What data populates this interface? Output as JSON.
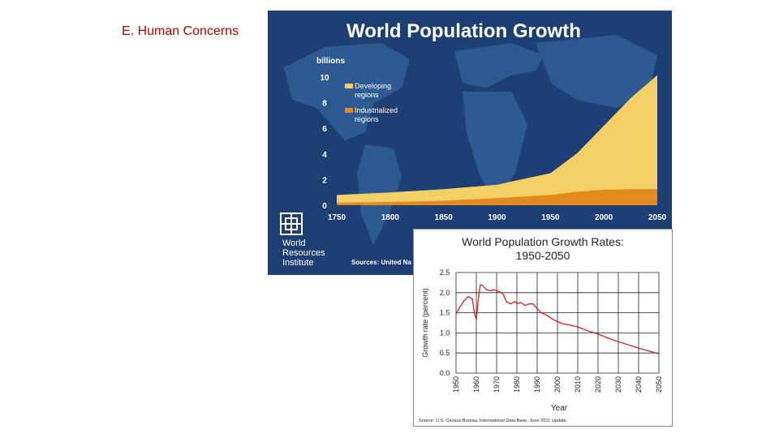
{
  "slide": {
    "title": "E. Human Concerns"
  },
  "colors": {
    "ocean": "#1e3f73",
    "land": "#2f5f96",
    "developing": "#f3cf66",
    "industrialized": "#e38a1f",
    "rate_line": "#d42020"
  },
  "chart_data": [
    {
      "type": "area",
      "title": "World Population Growth",
      "ylabel": "billions",
      "ylim": [
        0,
        10
      ],
      "yticks": [
        0,
        2,
        4,
        6,
        8,
        10
      ],
      "x": [
        1750,
        1800,
        1850,
        1900,
        1950,
        1975,
        2000,
        2025,
        2050
      ],
      "xticks": [
        1750,
        1800,
        1850,
        1900,
        1950,
        2000,
        2050
      ],
      "series": [
        {
          "name": "Industrialized regions",
          "legend": [
            "Industrialized",
            "regions"
          ],
          "values": [
            0.2,
            0.25,
            0.35,
            0.55,
            0.8,
            1.05,
            1.2,
            1.25,
            1.25
          ]
        },
        {
          "name": "Developing regions",
          "legend": [
            "Developing",
            "regions"
          ],
          "values": [
            0.6,
            0.75,
            0.9,
            1.05,
            1.7,
            3.0,
            5.0,
            7.1,
            8.9
          ]
        }
      ],
      "logo": {
        "lines": [
          "World",
          "Resources",
          "Institute"
        ]
      },
      "source": "Sources: United Na"
    },
    {
      "type": "line",
      "title": "World Population Growth Rates:",
      "subtitle": "1950-2050",
      "xlabel": "Year",
      "ylabel": "Growth rate (percent)",
      "xlim": [
        1950,
        2050
      ],
      "ylim": [
        0,
        2.5
      ],
      "xticks": [
        1950,
        1960,
        1970,
        1980,
        1990,
        2000,
        2010,
        2020,
        2030,
        2040,
        2050
      ],
      "yticks": [
        "0.0",
        "0.5",
        "1.0",
        "1.5",
        "2.0",
        "2.5"
      ],
      "series": [
        {
          "name": "Growth rate",
          "x": [
            1950,
            1952,
            1954,
            1956,
            1958,
            1959,
            1960,
            1961,
            1962,
            1963,
            1965,
            1967,
            1969,
            1971,
            1973,
            1975,
            1977,
            1979,
            1980,
            1982,
            1984,
            1986,
            1988,
            1990,
            1992,
            1995,
            1998,
            2000,
            2003,
            2006,
            2008,
            2010,
            2015,
            2020,
            2025,
            2030,
            2035,
            2040,
            2045,
            2050
          ],
          "y": [
            1.47,
            1.65,
            1.8,
            1.9,
            1.85,
            1.5,
            1.33,
            1.85,
            2.2,
            2.18,
            2.07,
            2.05,
            2.07,
            2.03,
            1.98,
            1.77,
            1.72,
            1.78,
            1.73,
            1.75,
            1.68,
            1.72,
            1.72,
            1.6,
            1.5,
            1.43,
            1.33,
            1.28,
            1.22,
            1.2,
            1.17,
            1.15,
            1.05,
            0.97,
            0.87,
            0.78,
            0.7,
            0.62,
            0.55,
            0.48
          ]
        }
      ],
      "source": "Source: U.S. Census Bureau, International Data Base, June 2011 Update."
    }
  ]
}
